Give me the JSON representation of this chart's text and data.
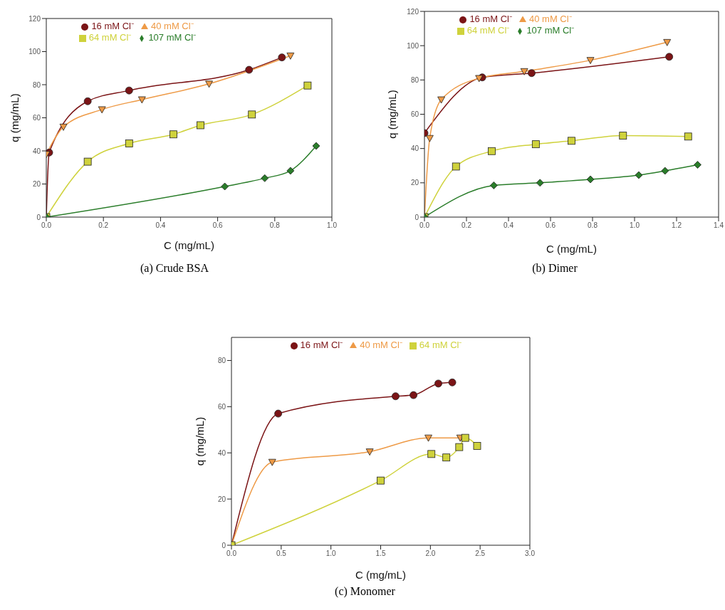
{
  "chart_data": [
    {
      "type": "line",
      "title": "(a) Crude BSA",
      "xlabel": "C (mg/mL)",
      "ylabel": "q (mg/mL)",
      "xlim": [
        0,
        1
      ],
      "xticks": [
        {
          "value": 0,
          "label": "0.0"
        },
        0.2,
        0.4,
        0.6,
        0.8,
        {
          "value": 1,
          "label": "1.0"
        }
      ],
      "ylim": [
        0,
        120
      ],
      "yticks": [
        0,
        20,
        40,
        60,
        80,
        100,
        120
      ],
      "legend": "top left",
      "line_style": "solid",
      "series": [
        {
          "name": "16 mM Cl⁻",
          "color": "#7b1416",
          "marker": "circle",
          "x": [
            0,
            0.01,
            0.145,
            0.29,
            0.71,
            0.825
          ],
          "values": [
            0,
            39,
            70,
            76.5,
            89,
            96.5
          ]
        },
        {
          "name": "40 mM Cl⁻",
          "color": "#ee9a46",
          "marker": "triangle",
          "x": [
            0,
            0.06,
            0.195,
            0.335,
            0.57,
            0.855
          ],
          "values": [
            38,
            54.5,
            65,
            71,
            80.5,
            97.5
          ]
        },
        {
          "name": "64 mM Cl⁻",
          "color": "#cfd23c",
          "marker": "square",
          "x": [
            0,
            0.145,
            0.29,
            0.445,
            0.54,
            0.72,
            0.915
          ],
          "values": [
            0,
            33.5,
            44.5,
            50,
            55.5,
            62,
            79.5
          ]
        },
        {
          "name": "107 mM Cl⁻",
          "color": "#2a7d2a",
          "marker": "diamond",
          "x": [
            0,
            0.625,
            0.765,
            0.855,
            0.945
          ],
          "values": [
            0,
            18.5,
            23.5,
            28,
            43
          ]
        }
      ]
    },
    {
      "type": "line",
      "title": "(b) Dimer",
      "xlabel": "C (mg/mL)",
      "ylabel": "q (mg/mL)",
      "xlim": [
        0,
        1.4
      ],
      "xticks": [
        {
          "value": 0,
          "label": "0.0"
        },
        0.2,
        0.4,
        0.6,
        0.8,
        {
          "value": 1,
          "label": "1.0"
        },
        1.2,
        1.4
      ],
      "ylim": [
        0,
        120
      ],
      "yticks": [
        0,
        20,
        40,
        60,
        80,
        100,
        120
      ],
      "legend": "top left",
      "line_style": "solid",
      "series": [
        {
          "name": "16 mM Cl⁻",
          "color": "#7b1416",
          "marker": "circle",
          "x": [
            0,
            0.275,
            0.51,
            1.165
          ],
          "values": [
            49,
            81.5,
            84,
            93.5
          ]
        },
        {
          "name": "40 mM Cl⁻",
          "color": "#ee9a46",
          "marker": "triangle",
          "x": [
            0,
            0.025,
            0.08,
            0.26,
            0.475,
            0.79,
            1.155
          ],
          "values": [
            0,
            46,
            68.5,
            81,
            85,
            91.5,
            102
          ]
        },
        {
          "name": "64 mM Cl⁻",
          "color": "#cfd23c",
          "marker": "square",
          "x": [
            0,
            0.15,
            0.32,
            0.53,
            0.7,
            0.945,
            1.255
          ],
          "values": [
            0,
            29.5,
            38.5,
            42.5,
            44.5,
            47.5,
            47
          ]
        },
        {
          "name": "107 mM Cl⁻",
          "color": "#2a7d2a",
          "marker": "diamond",
          "x": [
            0,
            0.33,
            0.55,
            0.79,
            1.02,
            1.145,
            1.3
          ],
          "values": [
            0,
            18.5,
            20,
            22,
            24.5,
            27,
            30.5
          ]
        }
      ]
    },
    {
      "type": "line",
      "title": "(c) Monomer",
      "xlabel": "C (mg/mL)",
      "ylabel": "q (mg/mL)",
      "xlim": [
        0,
        3
      ],
      "xticks": [
        {
          "value": 0,
          "label": "0.0"
        },
        0.5,
        {
          "value": 1,
          "label": "1.0"
        },
        1.5,
        {
          "value": 2,
          "label": "2.0"
        },
        2.5,
        {
          "value": 3,
          "label": "3.0"
        }
      ],
      "ylim": [
        0,
        90
      ],
      "yticks": [
        0,
        20,
        40,
        60,
        80
      ],
      "legend": "top left",
      "line_style": "solid",
      "series": [
        {
          "name": "16 mM Cl⁻",
          "color": "#7b1416",
          "marker": "circle",
          "x": [
            0,
            0.47,
            1.65,
            1.83,
            2.08,
            2.22
          ],
          "values": [
            0,
            57,
            64.5,
            65,
            70,
            70.5
          ]
        },
        {
          "name": "40 mM Cl⁻",
          "color": "#ee9a46",
          "marker": "triangle",
          "x": [
            0,
            0.41,
            1.39,
            1.98,
            2.3
          ],
          "values": [
            0,
            36,
            40.5,
            46.5,
            46.5
          ]
        },
        {
          "name": "64 mM Cl⁻",
          "color": "#cfd23c",
          "marker": "square",
          "x": [
            0,
            1.5,
            2.01,
            2.16,
            2.29,
            2.35,
            2.47
          ],
          "values": [
            0,
            28,
            39.5,
            38,
            42.5,
            46.5,
            43
          ]
        }
      ]
    }
  ]
}
